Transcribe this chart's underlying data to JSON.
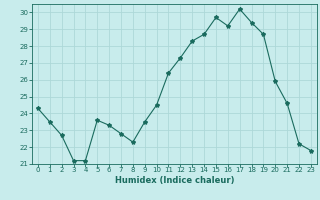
{
  "x": [
    0,
    1,
    2,
    3,
    4,
    5,
    6,
    7,
    8,
    9,
    10,
    11,
    12,
    13,
    14,
    15,
    16,
    17,
    18,
    19,
    20,
    21,
    22,
    23
  ],
  "y": [
    24.3,
    23.5,
    22.7,
    21.2,
    21.2,
    23.6,
    23.3,
    22.8,
    22.3,
    23.5,
    24.5,
    26.4,
    27.3,
    28.3,
    28.7,
    29.7,
    29.2,
    30.2,
    29.4,
    28.7,
    25.9,
    24.6,
    22.2,
    21.8
  ],
  "line_color": "#1a6b5e",
  "marker": "*",
  "marker_size": 3,
  "bg_color": "#c8ecec",
  "grid_color": "#add8d8",
  "xlabel": "Humidex (Indice chaleur)",
  "ylabel": "",
  "xlim": [
    -0.5,
    23.5
  ],
  "ylim": [
    21,
    30.5
  ],
  "yticks": [
    21,
    22,
    23,
    24,
    25,
    26,
    27,
    28,
    29,
    30
  ],
  "xticks": [
    0,
    1,
    2,
    3,
    4,
    5,
    6,
    7,
    8,
    9,
    10,
    11,
    12,
    13,
    14,
    15,
    16,
    17,
    18,
    19,
    20,
    21,
    22,
    23
  ],
  "tick_color": "#1a6b5e",
  "label_color": "#1a6b5e",
  "spine_color": "#1a6b5e",
  "tick_fontsize": 5.0,
  "xlabel_fontsize": 6.0
}
